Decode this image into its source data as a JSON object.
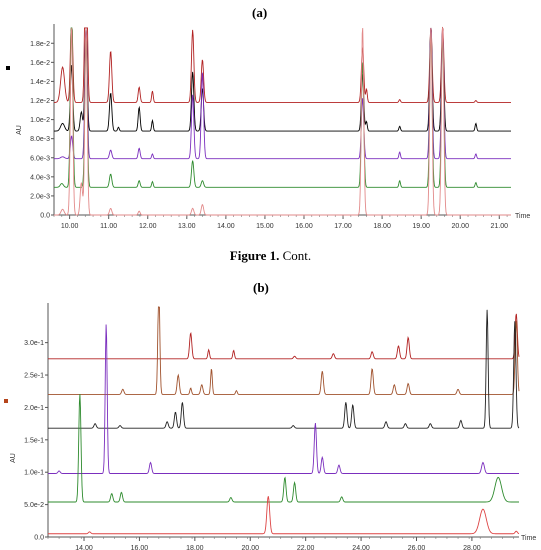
{
  "panel_a_label": "(a)",
  "panel_b_label": "(b)",
  "caption": {
    "bold": "Figure 1.",
    "rest": " Cont."
  },
  "chart_data": [
    {
      "type": "line",
      "title": "",
      "ylabel": "AU",
      "xlabel": "Time",
      "xlim": [
        9.6,
        21.3
      ],
      "ylim": [
        0,
        0.0196
      ],
      "x_ticks": [
        "10.00",
        "11.00",
        "12.00",
        "13.00",
        "14.00",
        "15.00",
        "16.00",
        "17.00",
        "18.00",
        "19.00",
        "20.00",
        "21.00"
      ],
      "x_tick_values": [
        10,
        11,
        12,
        13,
        14,
        15,
        16,
        17,
        18,
        19,
        20,
        21
      ],
      "y_ticks": [
        "0.0",
        "2.0e-3",
        "4.0e-3",
        "6.0e-3",
        "8.0e-3",
        "1.0e-2",
        "1.2e-2",
        "1.4e-2",
        "1.6e-2",
        "1.8e-2"
      ],
      "y_tick_values": [
        0,
        0.002,
        0.004,
        0.006,
        0.008,
        0.01,
        0.012,
        0.014,
        0.016,
        0.018
      ],
      "legend_marker_color": "#000000",
      "series": [
        {
          "color": "#b22222",
          "baseline": 0.0118,
          "peaks": [
            [
              9.82,
              0.0037,
              0.05
            ],
            [
              10.05,
              0.009,
              0.03
            ],
            [
              10.42,
              0.02,
              0.03
            ],
            [
              11.05,
              0.0054,
              0.03
            ],
            [
              11.78,
              0.0016,
              0.025
            ],
            [
              12.12,
              0.0012,
              0.02
            ],
            [
              13.15,
              0.0076,
              0.03
            ],
            [
              13.4,
              0.0045,
              0.03
            ],
            [
              17.5,
              0.0058,
              0.03
            ],
            [
              17.6,
              0.0014,
              0.02
            ],
            [
              18.45,
              0.0003,
              0.02
            ],
            [
              19.25,
              0.008,
              0.03
            ],
            [
              19.55,
              0.008,
              0.03
            ],
            [
              20.4,
              0.0002,
              0.02
            ]
          ]
        },
        {
          "color": "#000000",
          "baseline": 0.0088,
          "peaks": [
            [
              9.82,
              0.0008,
              0.05
            ],
            [
              10.05,
              0.007,
              0.03
            ],
            [
              10.3,
              0.002,
              0.03
            ],
            [
              10.42,
              0.011,
              0.03
            ],
            [
              11.05,
              0.004,
              0.03
            ],
            [
              11.25,
              0.0004,
              0.02
            ],
            [
              11.78,
              0.0025,
              0.025
            ],
            [
              12.12,
              0.0011,
              0.02
            ],
            [
              13.15,
              0.0062,
              0.03
            ],
            [
              13.4,
              0.0045,
              0.03
            ],
            [
              17.5,
              0.006,
              0.03
            ],
            [
              17.6,
              0.001,
              0.02
            ],
            [
              18.45,
              0.0005,
              0.02
            ],
            [
              19.25,
              0.011,
              0.03
            ],
            [
              19.55,
              0.0105,
              0.03
            ],
            [
              20.4,
              0.0008,
              0.02
            ]
          ]
        },
        {
          "color": "#7b2fbe",
          "baseline": 0.0059,
          "peaks": [
            [
              9.82,
              0.0002,
              0.05
            ],
            [
              10.05,
              0.0024,
              0.03
            ],
            [
              10.42,
              0.014,
              0.03
            ],
            [
              11.05,
              0.0009,
              0.03
            ],
            [
              11.78,
              0.0011,
              0.025
            ],
            [
              12.12,
              0.0005,
              0.02
            ],
            [
              13.15,
              0.0067,
              0.03
            ],
            [
              13.4,
              0.0091,
              0.03
            ],
            [
              17.5,
              0.0064,
              0.03
            ],
            [
              18.45,
              0.0007,
              0.02
            ],
            [
              19.25,
              0.0139,
              0.03
            ],
            [
              19.55,
              0.0137,
              0.03
            ],
            [
              20.4,
              0.0005,
              0.02
            ]
          ]
        },
        {
          "color": "#2e8b2e",
          "baseline": 0.0029,
          "peaks": [
            [
              9.8,
              0.0004,
              0.04
            ],
            [
              10.05,
              0.0198,
              0.03
            ],
            [
              10.42,
              0.0161,
              0.03
            ],
            [
              11.05,
              0.0014,
              0.03
            ],
            [
              11.78,
              0.0007,
              0.025
            ],
            [
              12.12,
              0.0006,
              0.02
            ],
            [
              13.15,
              0.0028,
              0.03
            ],
            [
              13.4,
              0.0007,
              0.03
            ],
            [
              17.5,
              0.0132,
              0.03
            ],
            [
              18.45,
              0.0007,
              0.02
            ],
            [
              19.25,
              0.0163,
              0.03
            ],
            [
              19.55,
              0.0161,
              0.03
            ],
            [
              20.4,
              0.0005,
              0.02
            ]
          ]
        },
        {
          "color": "#e28a8a",
          "baseline": 0.0,
          "peaks": [
            [
              9.82,
              0.0006,
              0.04
            ],
            [
              10.05,
              0.0199,
              0.03
            ],
            [
              10.3,
              0.0034,
              0.03
            ],
            [
              10.42,
              0.0199,
              0.03
            ],
            [
              11.05,
              0.0007,
              0.03
            ],
            [
              11.78,
              0.0004,
              0.025
            ],
            [
              13.15,
              0.0007,
              0.03
            ],
            [
              13.4,
              0.0011,
              0.03
            ],
            [
              17.5,
              0.0199,
              0.03
            ],
            [
              19.25,
              0.0199,
              0.03
            ],
            [
              19.55,
              0.0199,
              0.03
            ]
          ]
        }
      ]
    },
    {
      "type": "line",
      "title": "",
      "ylabel": "AU",
      "xlabel": "Time",
      "xlim": [
        12.7,
        29.7
      ],
      "ylim": [
        0,
        0.355
      ],
      "x_ticks": [
        "14.00",
        "16.00",
        "18.00",
        "20.00",
        "22.00",
        "24.00",
        "26.00",
        "28.00"
      ],
      "x_tick_values": [
        14,
        16,
        18,
        20,
        22,
        24,
        26,
        28
      ],
      "y_ticks": [
        "0.0",
        "5.0e-2",
        "1.0e-1",
        "1.5e-1",
        "2.0e-1",
        "2.5e-1",
        "3.0e-1"
      ],
      "y_tick_values": [
        0,
        0.05,
        0.1,
        0.15,
        0.2,
        0.25,
        0.3
      ],
      "legend_marker_color": "#b5451b",
      "series": [
        {
          "color": "#b22222",
          "baseline": 0.275,
          "peaks": [
            [
              17.85,
              0.04,
              0.04
            ],
            [
              18.5,
              0.014,
              0.03
            ],
            [
              19.4,
              0.013,
              0.03
            ],
            [
              21.6,
              0.004,
              0.04
            ],
            [
              23.0,
              0.008,
              0.04
            ],
            [
              24.4,
              0.011,
              0.04
            ],
            [
              25.35,
              0.02,
              0.04
            ],
            [
              25.7,
              0.033,
              0.04
            ],
            [
              29.6,
              0.07,
              0.04
            ]
          ]
        },
        {
          "color": "#a0522d",
          "baseline": 0.22,
          "peaks": [
            [
              15.4,
              0.008,
              0.04
            ],
            [
              16.7,
              0.168,
              0.035
            ],
            [
              17.4,
              0.03,
              0.04
            ],
            [
              17.85,
              0.01,
              0.03
            ],
            [
              18.25,
              0.015,
              0.04
            ],
            [
              18.6,
              0.04,
              0.03
            ],
            [
              19.5,
              0.006,
              0.03
            ],
            [
              22.6,
              0.036,
              0.04
            ],
            [
              24.4,
              0.04,
              0.04
            ],
            [
              25.2,
              0.015,
              0.04
            ],
            [
              25.7,
              0.017,
              0.04
            ],
            [
              27.5,
              0.008,
              0.04
            ],
            [
              29.6,
              0.115,
              0.04
            ]
          ]
        },
        {
          "color": "#222222",
          "baseline": 0.168,
          "peaks": [
            [
              14.4,
              0.007,
              0.04
            ],
            [
              15.3,
              0.004,
              0.04
            ],
            [
              17.0,
              0.01,
              0.04
            ],
            [
              17.3,
              0.025,
              0.04
            ],
            [
              17.55,
              0.04,
              0.04
            ],
            [
              21.55,
              0.004,
              0.04
            ],
            [
              23.45,
              0.04,
              0.04
            ],
            [
              23.7,
              0.036,
              0.04
            ],
            [
              24.9,
              0.01,
              0.04
            ],
            [
              25.6,
              0.007,
              0.04
            ],
            [
              26.5,
              0.007,
              0.04
            ],
            [
              27.6,
              0.012,
              0.04
            ],
            [
              28.55,
              0.183,
              0.035
            ],
            [
              29.55,
              0.165,
              0.04
            ]
          ]
        },
        {
          "color": "#7b2fbe",
          "baseline": 0.098,
          "peaks": [
            [
              13.1,
              0.004,
              0.04
            ],
            [
              14.8,
              0.231,
              0.035
            ],
            [
              16.4,
              0.017,
              0.04
            ],
            [
              22.35,
              0.078,
              0.04
            ],
            [
              22.6,
              0.025,
              0.04
            ],
            [
              23.2,
              0.013,
              0.04
            ],
            [
              28.4,
              0.017,
              0.05
            ]
          ]
        },
        {
          "color": "#2e8b2e",
          "baseline": 0.054,
          "peaks": [
            [
              13.85,
              0.167,
              0.04
            ],
            [
              15.0,
              0.013,
              0.04
            ],
            [
              15.35,
              0.015,
              0.04
            ],
            [
              19.3,
              0.007,
              0.04
            ],
            [
              21.25,
              0.038,
              0.04
            ],
            [
              21.6,
              0.03,
              0.04
            ],
            [
              23.3,
              0.008,
              0.04
            ],
            [
              28.95,
              0.038,
              0.12
            ]
          ]
        },
        {
          "color": "#dd4444",
          "baseline": 0.005,
          "peaks": [
            [
              14.2,
              0.003,
              0.04
            ],
            [
              20.65,
              0.058,
              0.05
            ],
            [
              28.4,
              0.038,
              0.12
            ],
            [
              29.6,
              0.004,
              0.04
            ]
          ]
        }
      ]
    }
  ]
}
